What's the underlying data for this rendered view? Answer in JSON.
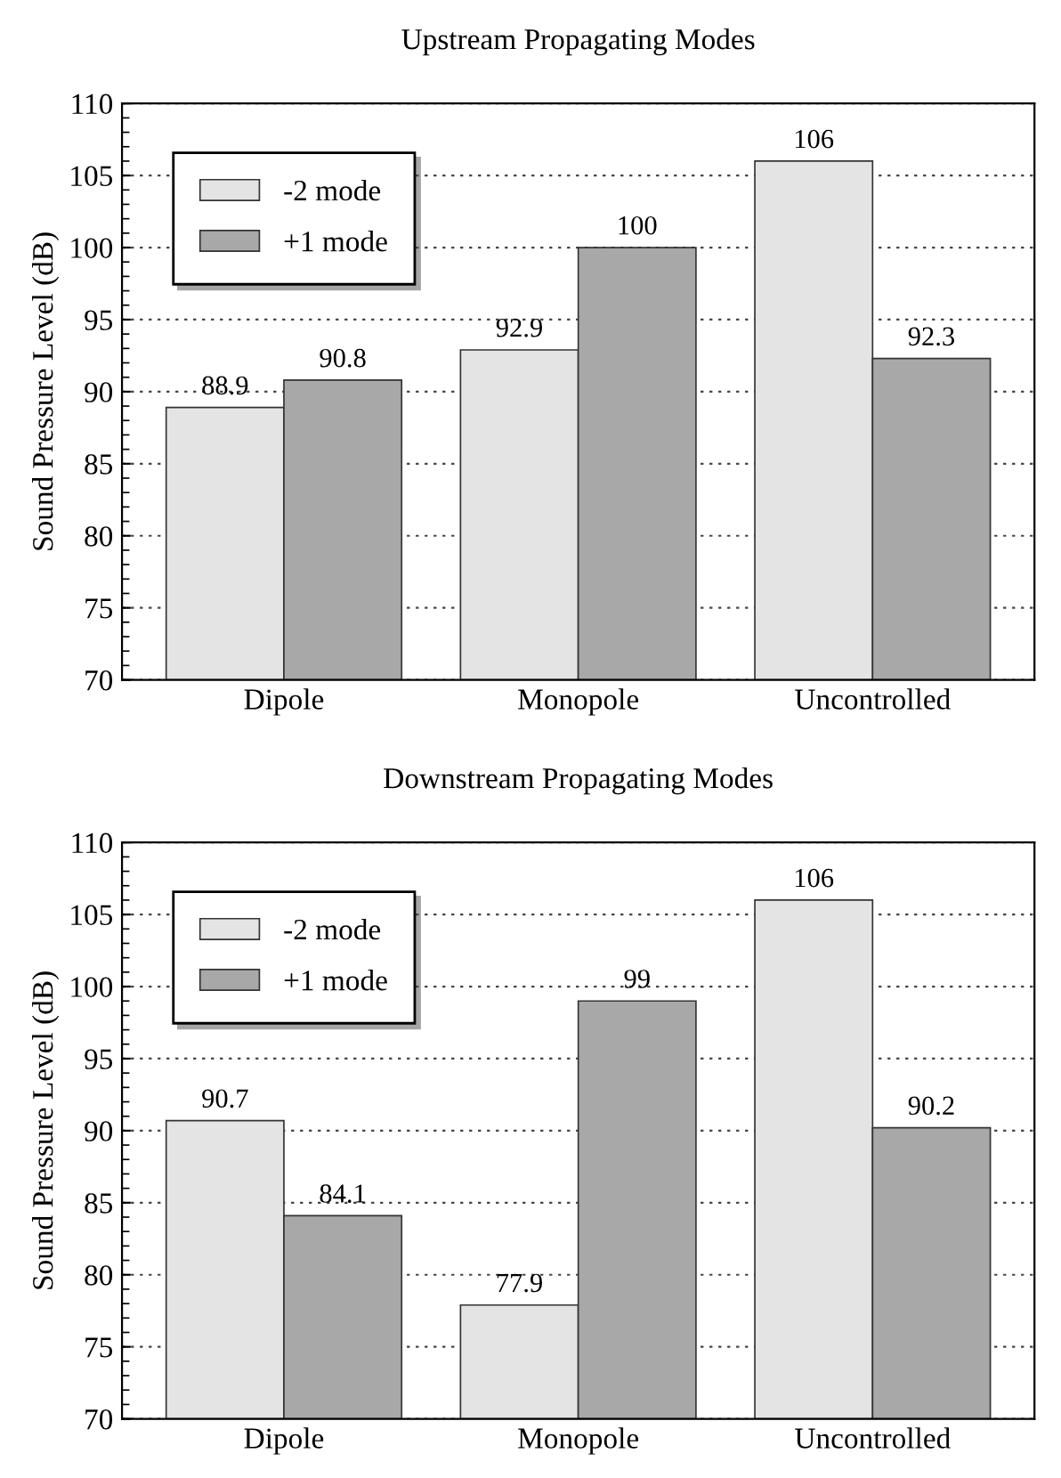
{
  "chart_data": [
    {
      "type": "bar",
      "title": "Upstream Propagating Modes",
      "ylabel": "Sound Pressure Level (dB)",
      "categories": [
        "Dipole",
        "Monopole",
        "Uncontrolled"
      ],
      "series": [
        {
          "name": "-2 mode",
          "color": "#e4e4e4",
          "values": [
            88.9,
            92.9,
            106
          ]
        },
        {
          "name": "+1 mode",
          "color": "#a8a8a8",
          "values": [
            90.8,
            100,
            92.3
          ]
        }
      ],
      "ylim": [
        70,
        110
      ],
      "yticks": [
        70,
        75,
        80,
        85,
        90,
        95,
        100,
        105,
        110
      ],
      "grid": "y",
      "legend": "top left",
      "data_labels": true
    },
    {
      "type": "bar",
      "title": "Downstream Propagating Modes",
      "ylabel": "Sound Pressure Level (dB)",
      "categories": [
        "Dipole",
        "Monopole",
        "Uncontrolled"
      ],
      "series": [
        {
          "name": "-2 mode",
          "color": "#e4e4e4",
          "values": [
            90.7,
            77.9,
            106
          ]
        },
        {
          "name": "+1 mode",
          "color": "#a8a8a8",
          "values": [
            84.1,
            99,
            90.2
          ]
        }
      ],
      "ylim": [
        70,
        110
      ],
      "yticks": [
        70,
        75,
        80,
        85,
        90,
        95,
        100,
        105,
        110
      ],
      "grid": "y",
      "legend": "top left",
      "data_labels": true
    }
  ]
}
